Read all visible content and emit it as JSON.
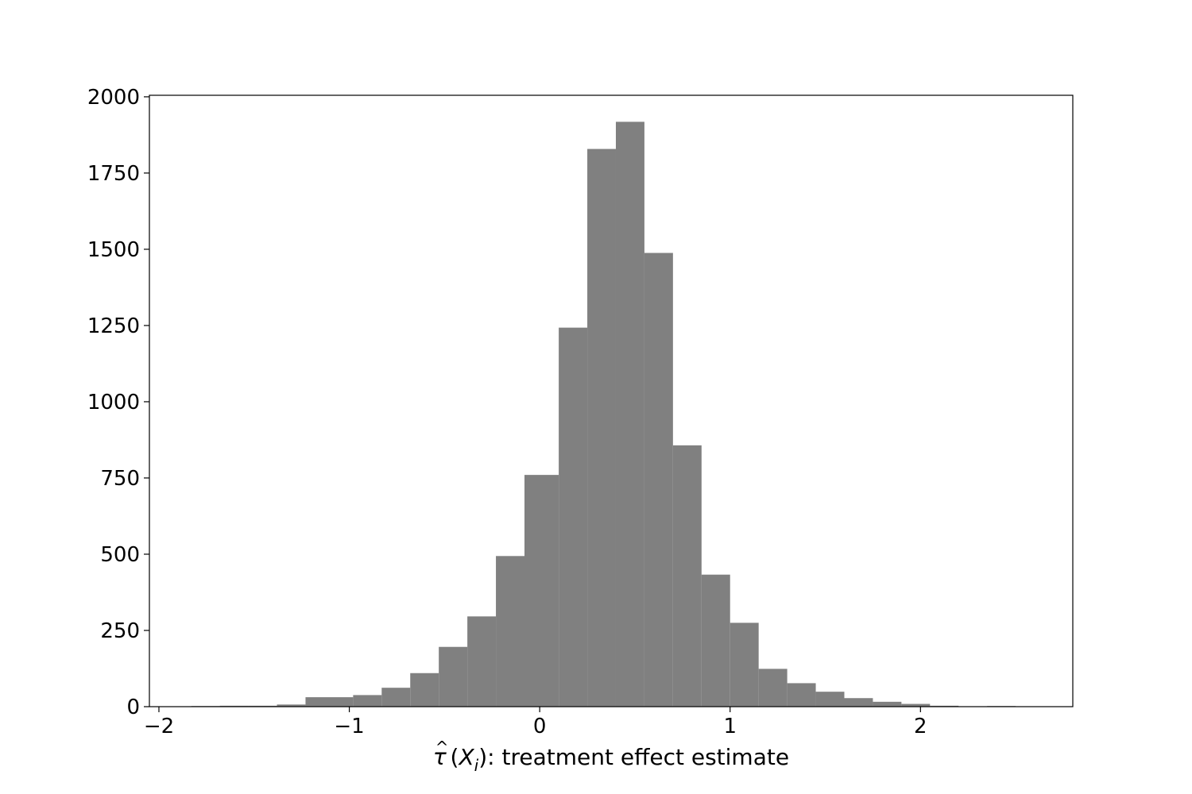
{
  "chart_data": {
    "type": "bar",
    "subtype": "histogram",
    "title": "",
    "xlabel": {
      "tau": "τ",
      "hat": "^",
      "prefix": "(",
      "var": "X",
      "sub": "i",
      "suffix": "): treatment effect estimate"
    },
    "ylabel": "",
    "xlim": [
      -2.05,
      2.8
    ],
    "ylim": [
      0,
      2005
    ],
    "x_ticks": [
      {
        "value": -2,
        "label": "−2"
      },
      {
        "value": -1,
        "label": "−1"
      },
      {
        "value": 0,
        "label": "0"
      },
      {
        "value": 1,
        "label": "1"
      },
      {
        "value": 2,
        "label": "2"
      }
    ],
    "y_ticks": [
      {
        "value": 0,
        "label": "0"
      },
      {
        "value": 250,
        "label": "250"
      },
      {
        "value": 500,
        "label": "500"
      },
      {
        "value": 750,
        "label": "750"
      },
      {
        "value": 1000,
        "label": "1000"
      },
      {
        "value": 1250,
        "label": "1250"
      },
      {
        "value": 1500,
        "label": "1500"
      },
      {
        "value": 1750,
        "label": "1750"
      },
      {
        "value": 2000,
        "label": "2000"
      }
    ],
    "bar_color": "#808080",
    "bins": [
      {
        "x0": -1.83,
        "x1": -1.68,
        "count": 2
      },
      {
        "x0": -1.68,
        "x1": -1.53,
        "count": 3
      },
      {
        "x0": -1.53,
        "x1": -1.38,
        "count": 3
      },
      {
        "x0": -1.38,
        "x1": -1.23,
        "count": 7
      },
      {
        "x0": -1.23,
        "x1": -0.98,
        "count": 31
      },
      {
        "x0": -0.98,
        "x1": -0.83,
        "count": 38
      },
      {
        "x0": -0.83,
        "x1": -0.68,
        "count": 62
      },
      {
        "x0": -0.68,
        "x1": -0.53,
        "count": 110
      },
      {
        "x0": -0.53,
        "x1": -0.38,
        "count": 196
      },
      {
        "x0": -0.38,
        "x1": -0.23,
        "count": 296
      },
      {
        "x0": -0.23,
        "x1": -0.08,
        "count": 494
      },
      {
        "x0": -0.08,
        "x1": 0.1,
        "count": 760
      },
      {
        "x0": 0.1,
        "x1": 0.25,
        "count": 1243
      },
      {
        "x0": 0.25,
        "x1": 0.4,
        "count": 1829
      },
      {
        "x0": 0.4,
        "x1": 0.55,
        "count": 1918
      },
      {
        "x0": 0.55,
        "x1": 0.7,
        "count": 1488
      },
      {
        "x0": 0.7,
        "x1": 0.85,
        "count": 857
      },
      {
        "x0": 0.85,
        "x1": 1.0,
        "count": 433
      },
      {
        "x0": 1.0,
        "x1": 1.15,
        "count": 275
      },
      {
        "x0": 1.15,
        "x1": 1.3,
        "count": 124
      },
      {
        "x0": 1.3,
        "x1": 1.45,
        "count": 77
      },
      {
        "x0": 1.45,
        "x1": 1.6,
        "count": 49
      },
      {
        "x0": 1.6,
        "x1": 1.75,
        "count": 28
      },
      {
        "x0": 1.75,
        "x1": 1.9,
        "count": 16
      },
      {
        "x0": 1.9,
        "x1": 2.05,
        "count": 9
      },
      {
        "x0": 2.05,
        "x1": 2.2,
        "count": 3
      },
      {
        "x0": 2.35,
        "x1": 2.5,
        "count": 2
      }
    ],
    "grid": false,
    "legend": "none"
  }
}
